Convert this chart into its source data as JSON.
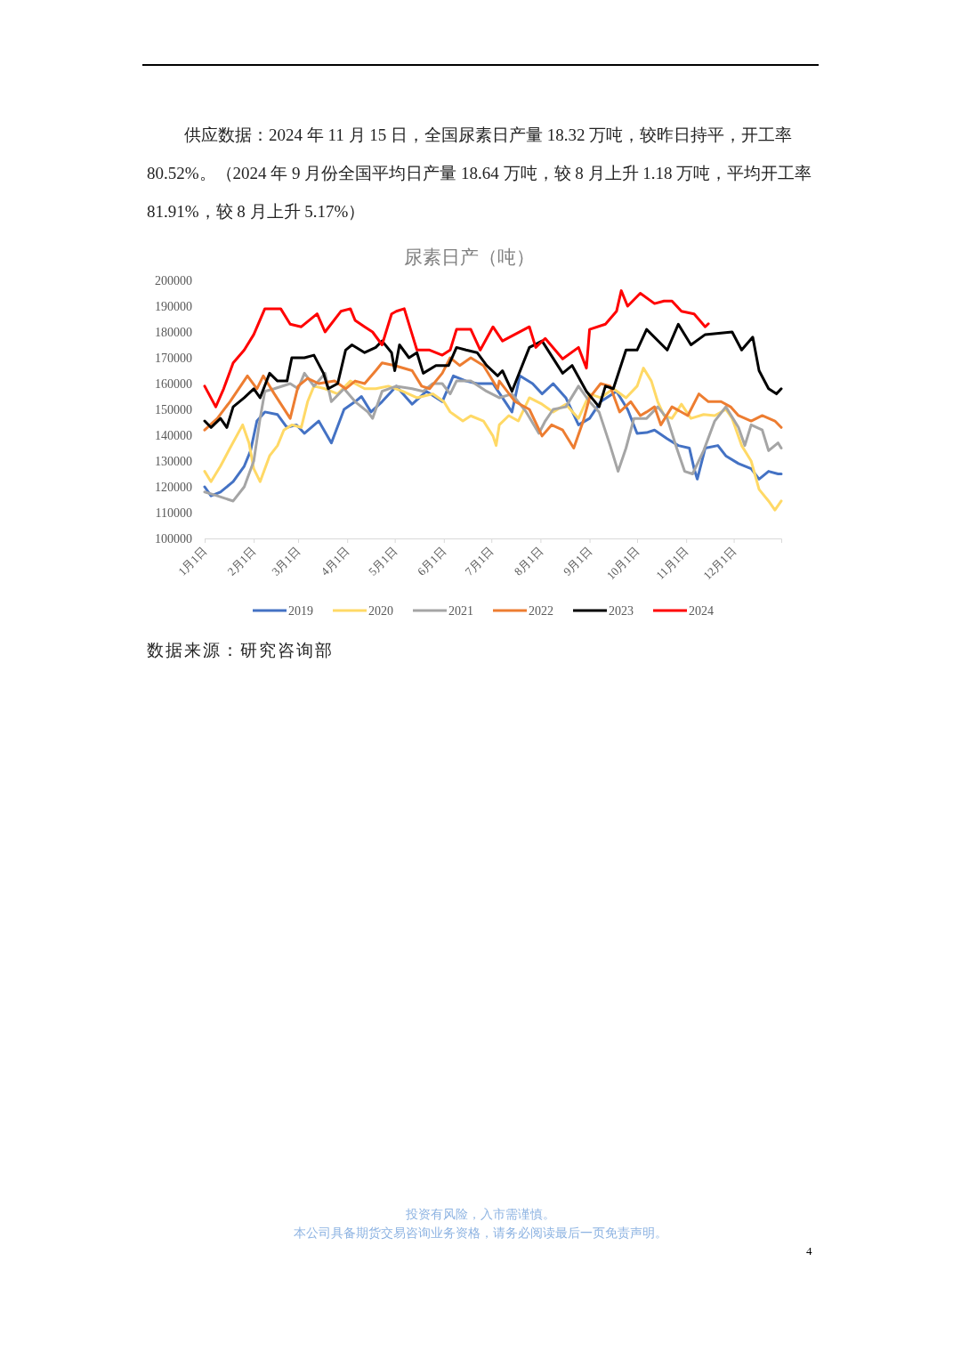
{
  "chart_data": {
    "type": "line",
    "title": "尿素日产（吨）",
    "subtitle": "供应数据：2024 年 11 月 15 日，全国尿素日产量 18.32 万吨，较昨日持平，开工率 80.52%。（2024 年 9 月份全国平均日产量 18.64 万吨，较 8 月上升 1.18 万吨，平均开工率 81.91%，较 8 月上升 5.17%）",
    "annotations": [
      "数据来源：研究咨询部",
      "投资有风险，入市需谨慎。",
      "本公司具备期货交易咨询业务资格，请务必阅读最后一页免责声明。",
      "4"
    ],
    "xlim": [
      "--01-01",
      "--12-31"
    ],
    "xticks": [
      {
        "value": "--01-01",
        "label": "1月1日"
      },
      {
        "value": "--02-01",
        "label": "2月1日"
      },
      {
        "value": "--03-01",
        "label": "3月1日"
      },
      {
        "value": "--04-01",
        "label": "4月1日"
      },
      {
        "value": "--05-01",
        "label": "5月1日"
      },
      {
        "value": "--06-01",
        "label": "6月1日"
      },
      {
        "value": "--07-01",
        "label": "7月1日"
      },
      {
        "value": "--08-01",
        "label": "8月1日"
      },
      {
        "value": "--09-01",
        "label": "9月1日"
      },
      {
        "value": "--10-01",
        "label": "10月1日"
      },
      {
        "value": "--11-01",
        "label": "11月1日"
      },
      {
        "value": "--12-01",
        "label": "12月1日"
      }
    ],
    "ylim": [
      100000,
      200000
    ],
    "yticks": [
      100000,
      110000,
      120000,
      130000,
      140000,
      150000,
      160000,
      170000,
      180000,
      190000,
      200000
    ],
    "grid": false,
    "legend": "bottom",
    "series": [
      {
        "name": "2019",
        "color": "#4472c4",
        "x": [
          "--01-01",
          "--01-05",
          "--01-11",
          "--01-19",
          "--01-26",
          "--01-30",
          "--02-03",
          "--02-08",
          "--02-16",
          "--02-22",
          "--02-28",
          "--03-05",
          "--03-14",
          "--03-22",
          "--03-30",
          "--04-06",
          "--04-10",
          "--04-16",
          "--04-23",
          "--05-02",
          "--05-12",
          "--05-21",
          "--05-31",
          "--06-07",
          "--06-15",
          "--06-22",
          "--07-02",
          "--07-08",
          "--07-14",
          "--07-19",
          "--07-27",
          "--08-02",
          "--08-09",
          "--08-17",
          "--08-25",
          "--09-01",
          "--09-08",
          "--09-18",
          "--09-25",
          "--10-01",
          "--10-07",
          "--10-12",
          "--10-20",
          "--10-27",
          "--11-03",
          "--11-06",
          "--11-08",
          "--11-13",
          "--11-21",
          "--11-26",
          "--12-04",
          "--12-12",
          "--12-17",
          "--12-23",
          "--12-29",
          "--12-31"
        ],
        "values": [
          120000,
          116500,
          118000,
          122000,
          128000,
          134000,
          145500,
          149000,
          148000,
          143000,
          144000,
          140700,
          145500,
          137000,
          150000,
          153000,
          155000,
          149000,
          153000,
          159000,
          152000,
          157000,
          153000,
          163000,
          161000,
          160000,
          160000,
          154500,
          149000,
          163000,
          160000,
          156000,
          160000,
          154500,
          144000,
          146500,
          153000,
          157000,
          150000,
          140700,
          141000,
          142000,
          138600,
          136000,
          135000,
          127000,
          123000,
          135000,
          136000,
          132000,
          129000,
          127000,
          123000,
          126000,
          125000,
          125000
        ]
      },
      {
        "name": "2020",
        "color": "#ffd966",
        "x": [
          "--01-01",
          "--01-05",
          "--01-11",
          "--01-17",
          "--01-25",
          "--01-29",
          "--02-01",
          "--02-05",
          "--02-11",
          "--02-16",
          "--02-20",
          "--02-25",
          "--03-03",
          "--03-07",
          "--03-11",
          "--03-18",
          "--03-26",
          "--04-03",
          "--04-12",
          "--04-19",
          "--04-27",
          "--05-06",
          "--05-15",
          "--05-25",
          "--06-01",
          "--06-05",
          "--06-13",
          "--06-18",
          "--06-26",
          "--07-02",
          "--07-04",
          "--07-06",
          "--07-12",
          "--07-18",
          "--07-25",
          "--08-02",
          "--08-09",
          "--08-17",
          "--08-25",
          "--09-01",
          "--09-08",
          "--09-16",
          "--09-24",
          "--10-01",
          "--10-05",
          "--10-10",
          "--10-14",
          "--10-18",
          "--10-23",
          "--10-29",
          "--11-04",
          "--11-12",
          "--11-19",
          "--11-26",
          "--11-30",
          "--12-06",
          "--12-12",
          "--12-17",
          "--12-23",
          "--12-27",
          "--12-31"
        ],
        "values": [
          126000,
          122000,
          128000,
          135000,
          144000,
          137000,
          127000,
          122000,
          132000,
          136000,
          142000,
          144000,
          143000,
          153000,
          159000,
          158000,
          156000,
          161000,
          158000,
          158000,
          159000,
          157000,
          154500,
          156000,
          153000,
          149000,
          145500,
          147500,
          145500,
          139700,
          136000,
          144000,
          147600,
          145500,
          154500,
          152000,
          149000,
          152000,
          146500,
          156000,
          154500,
          158000,
          154500,
          159000,
          166000,
          161000,
          153000,
          147600,
          146500,
          152000,
          146500,
          148000,
          147600,
          150000,
          146500,
          136000,
          130000,
          119000,
          114500,
          111000,
          114500
        ]
      },
      {
        "name": "2021",
        "color": "#a5a5a5",
        "x": [
          "--01-01",
          "--01-09",
          "--01-19",
          "--01-26",
          "--02-01",
          "--02-05",
          "--02-08",
          "--02-14",
          "--02-24",
          "--03-01",
          "--03-05",
          "--03-11",
          "--03-18",
          "--03-22",
          "--03-30",
          "--04-06",
          "--04-14",
          "--04-17",
          "--04-23",
          "--05-02",
          "--05-12",
          "--05-19",
          "--05-25",
          "--05-31",
          "--06-05",
          "--06-09",
          "--06-18",
          "--06-28",
          "--07-06",
          "--07-14",
          "--07-23",
          "--07-31",
          "--08-04",
          "--08-09",
          "--08-17",
          "--08-25",
          "--09-01",
          "--09-07",
          "--09-14",
          "--09-19",
          "--09-24",
          "--09-29",
          "--10-07",
          "--10-14",
          "--10-20",
          "--10-26",
          "--10-31",
          "--11-05",
          "--11-12",
          "--11-19",
          "--11-26",
          "--12-04",
          "--12-08",
          "--12-12",
          "--12-19",
          "--12-23",
          "--12-29",
          "--12-31"
        ],
        "values": [
          118000,
          116500,
          114500,
          120000,
          130000,
          146500,
          157000,
          158000,
          160000,
          158000,
          164000,
          159000,
          164000,
          153000,
          158000,
          153000,
          149000,
          146500,
          157000,
          159000,
          158000,
          157000,
          160000,
          160000,
          156000,
          161000,
          161000,
          157000,
          154500,
          156000,
          149000,
          140700,
          145500,
          150000,
          151000,
          159000,
          153000,
          149000,
          136000,
          126000,
          135000,
          146500,
          146500,
          151000,
          146500,
          135000,
          126000,
          125000,
          134000,
          145500,
          151000,
          143000,
          136000,
          144000,
          142000,
          134000,
          137000,
          135000
        ]
      },
      {
        "name": "2022",
        "color": "#ed7d31",
        "x": [
          "--01-01",
          "--01-09",
          "--01-17",
          "--01-28",
          "--02-03",
          "--02-07",
          "--02-14",
          "--02-24",
          "--03-01",
          "--03-07",
          "--03-14",
          "--03-24",
          "--03-31",
          "--04-06",
          "--04-12",
          "--04-19",
          "--04-23",
          "--05-01",
          "--05-12",
          "--05-18",
          "--05-23",
          "--05-31",
          "--06-05",
          "--06-11",
          "--06-18",
          "--06-26",
          "--07-05",
          "--07-06",
          "--07-16",
          "--07-25",
          "--08-02",
          "--08-08",
          "--08-15",
          "--08-22",
          "--08-28",
          "--09-01",
          "--09-08",
          "--09-14",
          "--09-20",
          "--09-27",
          "--10-03",
          "--10-07",
          "--10-12",
          "--10-16",
          "--10-23",
          "--11-02",
          "--11-09",
          "--11-15",
          "--11-23",
          "--11-29",
          "--12-04",
          "--12-12",
          "--12-19",
          "--12-27",
          "--12-31"
        ],
        "values": [
          142000,
          146500,
          153000,
          163000,
          158000,
          163000,
          156000,
          146500,
          159000,
          162000,
          160000,
          161000,
          158000,
          161000,
          160000,
          165000,
          168000,
          167000,
          165000,
          159000,
          158000,
          164000,
          170000,
          167000,
          170000,
          167000,
          158000,
          161000,
          153000,
          150000,
          139700,
          144000,
          142000,
          135000,
          145500,
          154500,
          160000,
          159000,
          149000,
          153000,
          147600,
          149000,
          151000,
          144000,
          151000,
          147600,
          156000,
          153000,
          153000,
          151000,
          147600,
          145500,
          147600,
          145500,
          143000
        ]
      },
      {
        "name": "2023",
        "color": "#000000",
        "x": [
          "--01-01",
          "--01-05",
          "--01-11",
          "--01-15",
          "--01-19",
          "--01-26",
          "--02-01",
          "--02-05",
          "--02-11",
          "--02-16",
          "--02-22",
          "--02-25",
          "--03-05",
          "--03-11",
          "--03-17",
          "--03-20",
          "--03-26",
          "--03-31",
          "--04-04",
          "--04-12",
          "--04-19",
          "--04-23",
          "--04-29",
          "--05-01",
          "--05-04",
          "--05-10",
          "--05-15",
          "--05-19",
          "--05-27",
          "--06-04",
          "--06-09",
          "--06-15",
          "--06-22",
          "--06-28",
          "--07-05",
          "--07-08",
          "--07-14",
          "--07-25",
          "--08-02",
          "--08-15",
          "--08-21",
          "--08-30",
          "--09-07",
          "--09-11",
          "--09-16",
          "--09-24",
          "--10-01",
          "--10-07",
          "--10-20",
          "--10-27",
          "--11-04",
          "--11-13",
          "--11-30",
          "--12-06",
          "--12-13",
          "--12-17",
          "--12-23",
          "--12-28",
          "--12-31"
        ],
        "values": [
          145500,
          143000,
          146500,
          143000,
          151000,
          154500,
          158000,
          154500,
          164000,
          161000,
          161000,
          170000,
          170000,
          171000,
          164000,
          158000,
          160000,
          173000,
          175000,
          172000,
          174000,
          176500,
          172000,
          165000,
          175000,
          170000,
          172000,
          164000,
          167000,
          167000,
          174000,
          173000,
          172000,
          167000,
          163000,
          165000,
          157000,
          174000,
          176500,
          164000,
          167000,
          157000,
          151000,
          159000,
          158000,
          173000,
          173000,
          181000,
          173000,
          183000,
          175000,
          179000,
          180000,
          173000,
          178000,
          165000,
          158000,
          156000,
          158000
        ]
      },
      {
        "name": "2024",
        "color": "#ff0000",
        "x": [
          "--01-01",
          "--01-08",
          "--01-13",
          "--01-19",
          "--01-26",
          "--02-01",
          "--02-08",
          "--02-18",
          "--02-24",
          "--03-03",
          "--03-13",
          "--03-18",
          "--03-28",
          "--04-03",
          "--04-06",
          "--04-12",
          "--04-17",
          "--04-23",
          "--04-29",
          "--05-02",
          "--05-07",
          "--05-12",
          "--05-15",
          "--05-23",
          "--05-31",
          "--06-05",
          "--06-09",
          "--06-18",
          "--06-24",
          "--07-02",
          "--07-08",
          "--07-25",
          "--07-29",
          "--08-04",
          "--08-15",
          "--08-25",
          "--08-30",
          "--09-01",
          "--09-11",
          "--09-18",
          "--09-21",
          "--09-25",
          "--10-03",
          "--10-12",
          "--10-18",
          "--10-23",
          "--10-29",
          "--11-06",
          "--11-13",
          "--11-15"
        ],
        "values": [
          159000,
          151000,
          158000,
          168000,
          173000,
          179000,
          189000,
          189000,
          183000,
          182000,
          187000,
          180000,
          188000,
          189000,
          184500,
          182000,
          180000,
          175000,
          187000,
          188000,
          189000,
          179000,
          173000,
          173000,
          171000,
          173000,
          181000,
          181000,
          173000,
          182000,
          176500,
          182000,
          174000,
          177500,
          169600,
          174000,
          166000,
          181000,
          183000,
          188000,
          196000,
          190000,
          195000,
          191000,
          192000,
          192000,
          188000,
          187000,
          182000,
          183200
        ]
      }
    ]
  }
}
